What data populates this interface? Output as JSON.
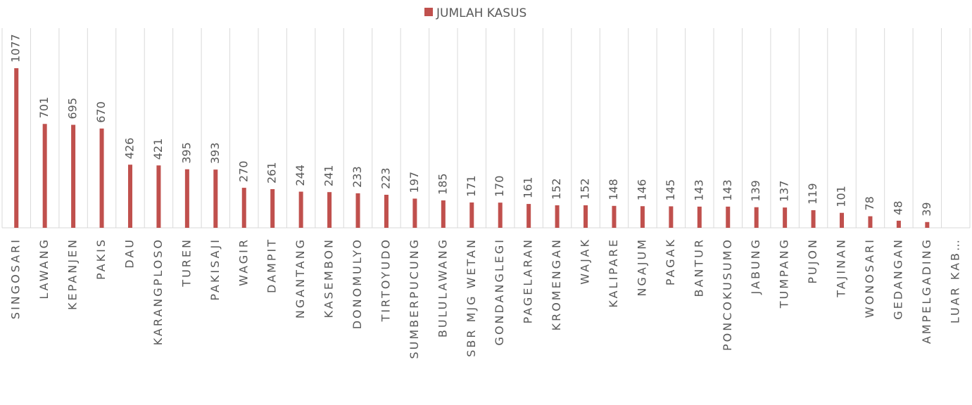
{
  "chart_data": {
    "type": "bar",
    "series": [
      {
        "name": "JUMLAH KASUS",
        "color": "#c0504d",
        "values": [
          1077,
          701,
          695,
          670,
          426,
          421,
          395,
          393,
          270,
          261,
          244,
          241,
          233,
          223,
          197,
          185,
          171,
          170,
          161,
          152,
          152,
          148,
          146,
          145,
          143,
          143,
          139,
          137,
          119,
          101,
          78,
          48,
          39,
          null
        ]
      }
    ],
    "categories": [
      "SINGOSARI",
      "LAWANG",
      "KEPANJEN",
      "PAKIS",
      "DAU",
      "KARANGPLOSO",
      "TUREN",
      "PAKISAJI",
      "WAGIR",
      "DAMPIT",
      "NGANTANG",
      "KASEMBON",
      "DONOMULYO",
      "TIRTOYUDO",
      "SUMBERPUCUNG",
      "BULULAWANG",
      "SBR MJG WETAN",
      "GONDANGLEGI",
      "PAGELARAN",
      "KROMENGAN",
      "WAJAK",
      "KALIPARE",
      "NGAJUM",
      "PAGAK",
      "BANTUR",
      "PONCOKUSUMO",
      "JABUNG",
      "TUMPANG",
      "PUJON",
      "TAJINAN",
      "WONOSARI",
      "GEDANGAN",
      "AMPELGADING",
      "LUAR KAB…"
    ],
    "legend": "top"
  }
}
